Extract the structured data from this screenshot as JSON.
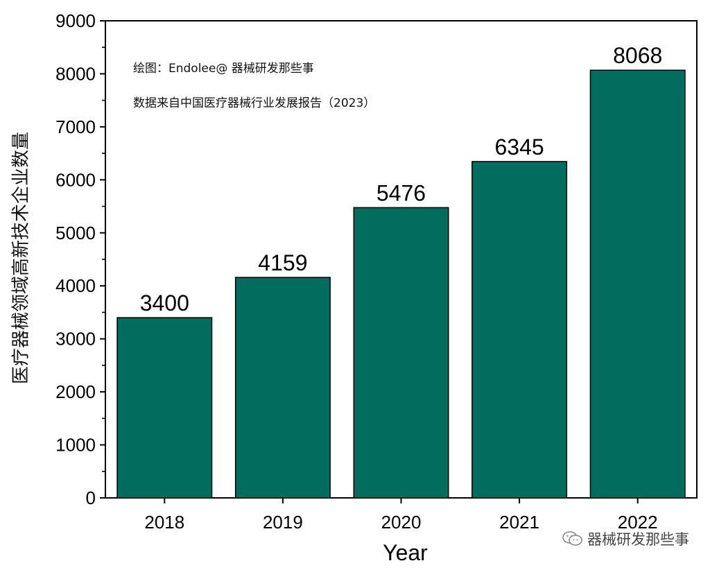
{
  "chart_data": {
    "type": "bar",
    "categories": [
      "2018",
      "2019",
      "2020",
      "2021",
      "2022"
    ],
    "values": [
      3400,
      4159,
      5476,
      6345,
      8068
    ],
    "xlabel": "Year",
    "ylabel": "医疗器械领域高新技术企业数量",
    "ylim": [
      0,
      9000
    ],
    "yticks": [
      0,
      1000,
      2000,
      3000,
      4000,
      5000,
      6000,
      7000,
      8000,
      9000
    ],
    "grid": false,
    "bar_color": "#026C5F",
    "annotations": [
      "绘图：Endolee@ 器械研发那些事",
      "数据来自中国医疗器械行业发展报告（2023）"
    ]
  },
  "watermark": {
    "text": "器械研发那些事",
    "icon": "wechat-icon"
  }
}
